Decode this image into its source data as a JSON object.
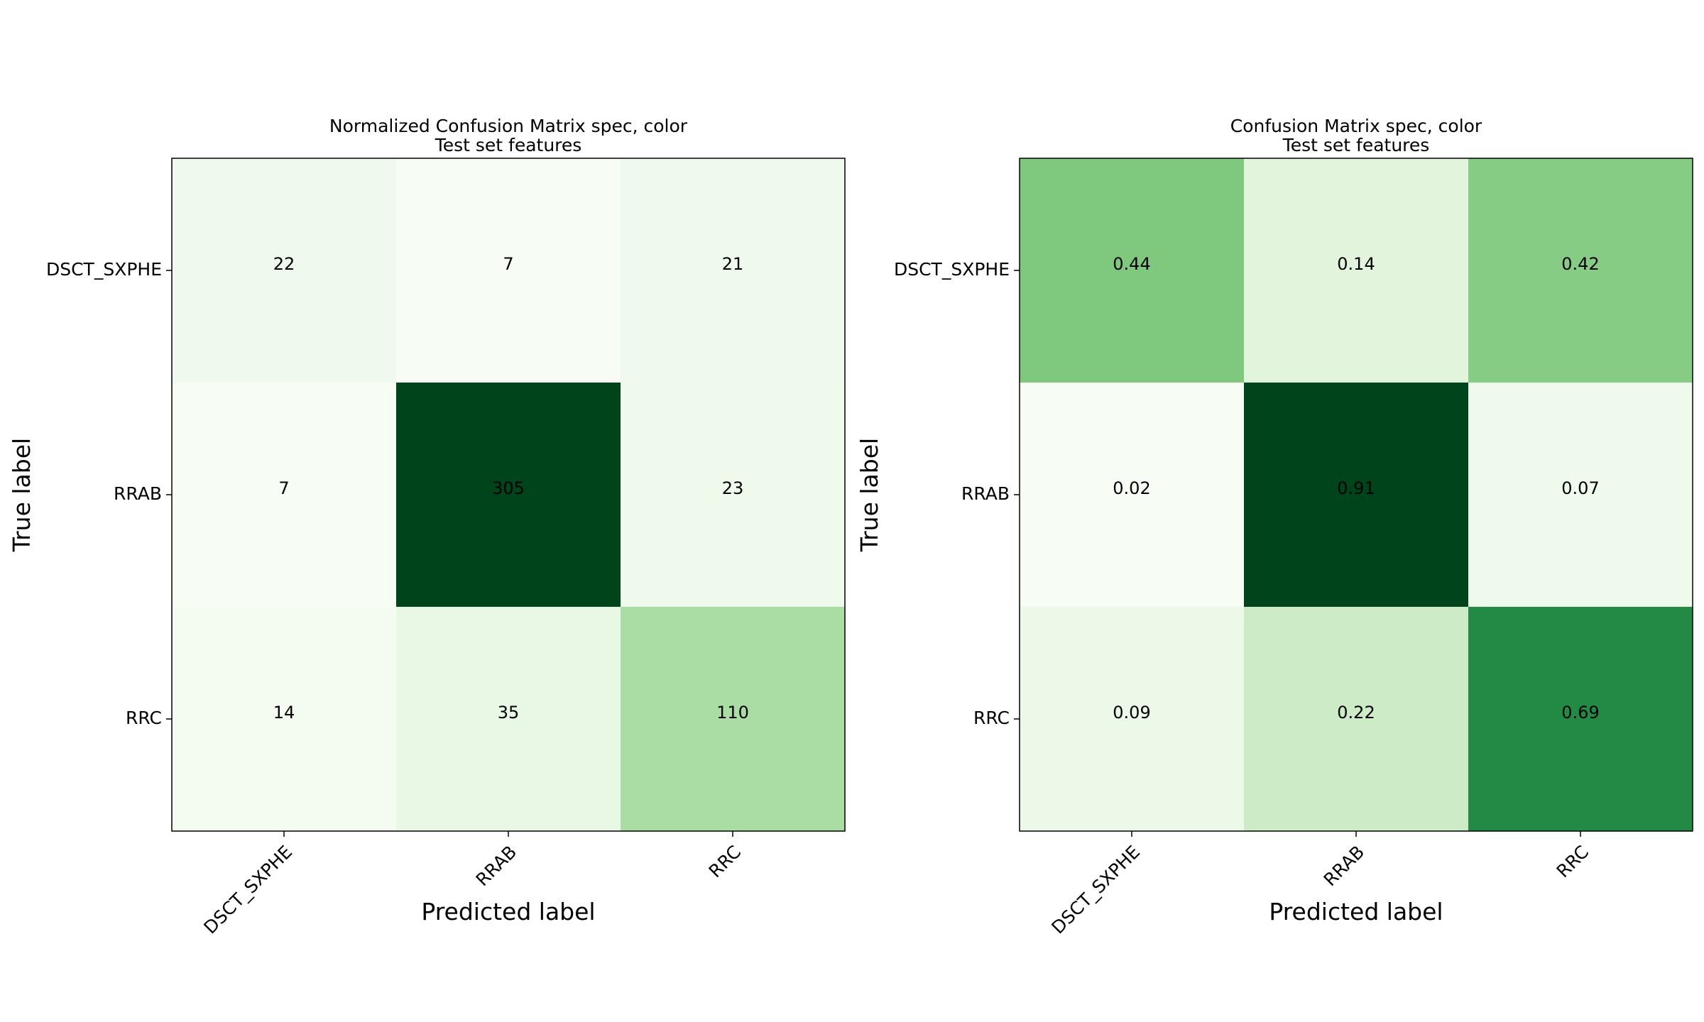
{
  "chart_data": [
    {
      "type": "heatmap",
      "title": "Normalized Confusion Matrix spec, color",
      "subtitle": "Test set features",
      "xlabel": "Predicted label",
      "ylabel": "True label",
      "x_categories": [
        "DSCT_SXPHE",
        "RRAB",
        "RRC"
      ],
      "y_categories": [
        "DSCT_SXPHE",
        "RRAB",
        "RRC"
      ],
      "values": [
        [
          22,
          7,
          21
        ],
        [
          7,
          305,
          23
        ],
        [
          14,
          35,
          110
        ]
      ],
      "labels": [
        [
          "22",
          "7",
          "21"
        ],
        [
          "7",
          "305",
          "23"
        ],
        [
          "14",
          "35",
          "110"
        ]
      ],
      "colormap": "Greens",
      "grid": false
    },
    {
      "type": "heatmap",
      "title": "Confusion Matrix spec, color",
      "subtitle": "Test set features",
      "xlabel": "Predicted label",
      "ylabel": "True label",
      "x_categories": [
        "DSCT_SXPHE",
        "RRAB",
        "RRC"
      ],
      "y_categories": [
        "DSCT_SXPHE",
        "RRAB",
        "RRC"
      ],
      "values": [
        [
          0.44,
          0.14,
          0.42
        ],
        [
          0.02,
          0.91,
          0.07
        ],
        [
          0.09,
          0.22,
          0.69
        ]
      ],
      "labels": [
        [
          "0.44",
          "0.14",
          "0.42"
        ],
        [
          "0.02",
          "0.91",
          "0.07"
        ],
        [
          "0.09",
          "0.22",
          "0.69"
        ]
      ],
      "colormap": "Greens",
      "grid": false
    }
  ]
}
